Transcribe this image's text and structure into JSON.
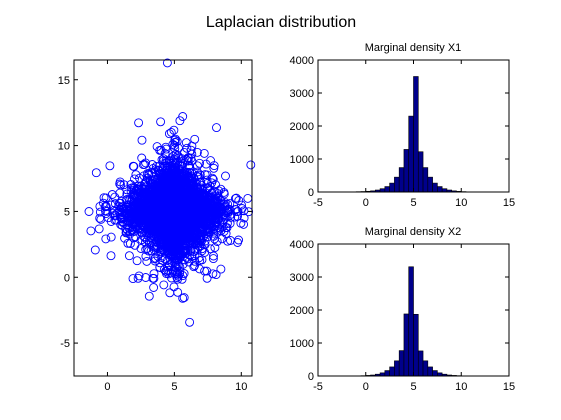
{
  "figure_title": "Laplacian distribution",
  "colors": {
    "marker": "#0000ff",
    "bar_fill": "#00008b",
    "bar_edge": "#000000",
    "axes": "#000000",
    "background": "#ffffff"
  },
  "chart_data": [
    {
      "type": "scatter",
      "title": "",
      "xlabel": "",
      "ylabel": "",
      "xlim": [
        -2.5,
        10.8
      ],
      "ylim": [
        -7.5,
        16.5
      ],
      "xticks": [
        0,
        5,
        10
      ],
      "yticks": [
        -5,
        0,
        5,
        10,
        15
      ],
      "marker": "open-circle",
      "center": [
        5,
        5
      ],
      "scale": 1,
      "n_points": 5000,
      "grid": false
    },
    {
      "type": "bar",
      "title": "Marginal density X1",
      "xlim": [
        -5,
        15
      ],
      "ylim": [
        0,
        4000
      ],
      "xticks": [
        -5,
        0,
        5,
        10,
        15
      ],
      "yticks": [
        0,
        1000,
        2000,
        3000,
        4000
      ],
      "bin_centers": [
        -2.25,
        -1.75,
        -1.25,
        -0.75,
        -0.25,
        0.25,
        0.75,
        1.25,
        1.75,
        2.25,
        2.75,
        3.25,
        3.75,
        4.25,
        4.75,
        5.25,
        5.75,
        6.25,
        6.75,
        7.25,
        7.75,
        8.25,
        8.75,
        9.25,
        9.75,
        10.25,
        10.75
      ],
      "values": [
        3,
        4,
        6,
        10,
        15,
        22,
        35,
        60,
        100,
        165,
        270,
        450,
        740,
        1290,
        2300,
        3500,
        1220,
        740,
        450,
        270,
        165,
        100,
        60,
        35,
        20,
        12,
        6
      ],
      "grid": false
    },
    {
      "type": "bar",
      "title": "Marginal density X2",
      "xlim": [
        -5,
        15
      ],
      "ylim": [
        0,
        4000
      ],
      "xticks": [
        -5,
        0,
        5,
        10,
        15
      ],
      "yticks": [
        0,
        1000,
        2000,
        3000,
        4000
      ],
      "bin_centers": [
        -1.25,
        -0.75,
        -0.25,
        0.25,
        0.75,
        1.25,
        1.75,
        2.25,
        2.75,
        3.25,
        3.75,
        4.25,
        4.75,
        5.25,
        5.75,
        6.25,
        6.75,
        7.25,
        7.75,
        8.25,
        8.75,
        9.25,
        9.75,
        10.25
      ],
      "values": [
        3,
        6,
        10,
        18,
        30,
        55,
        95,
        165,
        275,
        460,
        770,
        1880,
        3310,
        1870,
        760,
        460,
        275,
        165,
        95,
        55,
        30,
        18,
        10,
        5
      ],
      "grid": false
    }
  ]
}
